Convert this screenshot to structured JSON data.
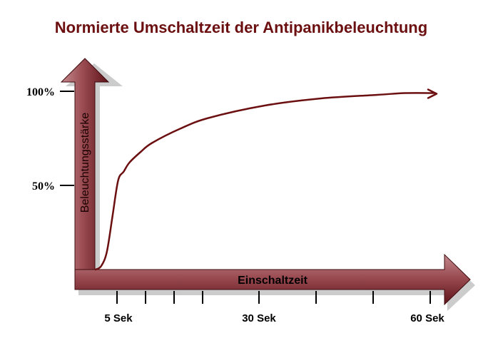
{
  "chart_data": {
    "type": "line",
    "title": "Normierte Umschaltzeit der Antipanikbeleuchtung",
    "xlabel": "Einschaltzeit",
    "ylabel": "Beleuchtungsstärke",
    "x_ticks": [
      "5 Sek",
      "30 Sek",
      "60 Sek"
    ],
    "y_ticks": [
      "50%",
      "100%"
    ],
    "series": [
      {
        "x": [
          0,
          1,
          2,
          3,
          4,
          5,
          6,
          8,
          10,
          15,
          20,
          30,
          40,
          50,
          55,
          60
        ],
        "values": [
          0,
          2,
          10,
          30,
          50,
          55,
          60,
          66,
          71,
          79,
          85,
          92,
          96,
          98,
          99,
          99
        ]
      }
    ],
    "grid": false
  },
  "colors": {
    "title": "#6b0f10",
    "axis_fill_light": "#b06a6e",
    "axis_fill_dark": "#6a1c22",
    "curve": "#6b0f10"
  }
}
